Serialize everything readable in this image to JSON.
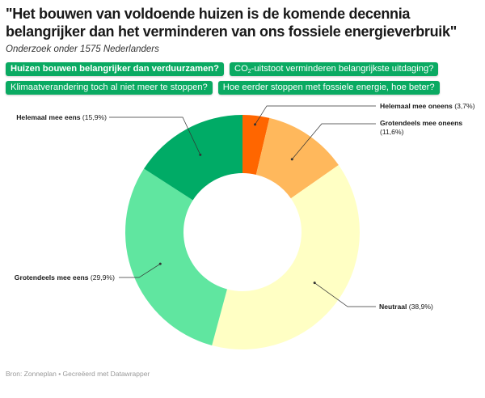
{
  "title": "\"Het bouwen van voldoende huizen is de komende decennia belangrijker dan het verminderen van ons fossiele energieverbruik\"",
  "subtitle": "Onderzoek onder 1575 Nederlanders",
  "buttons": [
    {
      "label": "Huizen bouwen belangrijker dan verduurzamen?",
      "active": true
    },
    {
      "label_pre": "CO",
      "label_sub": "2",
      "label_post": "-uitstoot verminderen belangrijkste uitdaging?",
      "active": false
    },
    {
      "label": "Klimaatverandering toch al niet meer te stoppen?",
      "active": false
    },
    {
      "label": "Hoe eerder stoppen met fossiele energie, hoe beter?",
      "active": false
    }
  ],
  "chart_data": {
    "type": "donut",
    "slices": [
      {
        "name": "Helemaal mee oneens",
        "value": 3.7,
        "display": "(3,7%)",
        "color": "#ff6600"
      },
      {
        "name": "Grotendeels mee oneens",
        "value": 11.6,
        "display": "(11,6%)",
        "color": "#ffb85c"
      },
      {
        "name": "Neutraal",
        "value": 38.9,
        "display": "(38,9%)",
        "color": "#ffffc4"
      },
      {
        "name": "Grotendeels mee eens",
        "value": 29.9,
        "display": "(29,9%)",
        "color": "#60e6a0"
      },
      {
        "name": "Helemaal mee eens",
        "value": 15.9,
        "display": "(15,9%)",
        "color": "#00ab66"
      }
    ]
  },
  "footer": "Bron: Zonneplan • Gecreëerd met Datawrapper"
}
